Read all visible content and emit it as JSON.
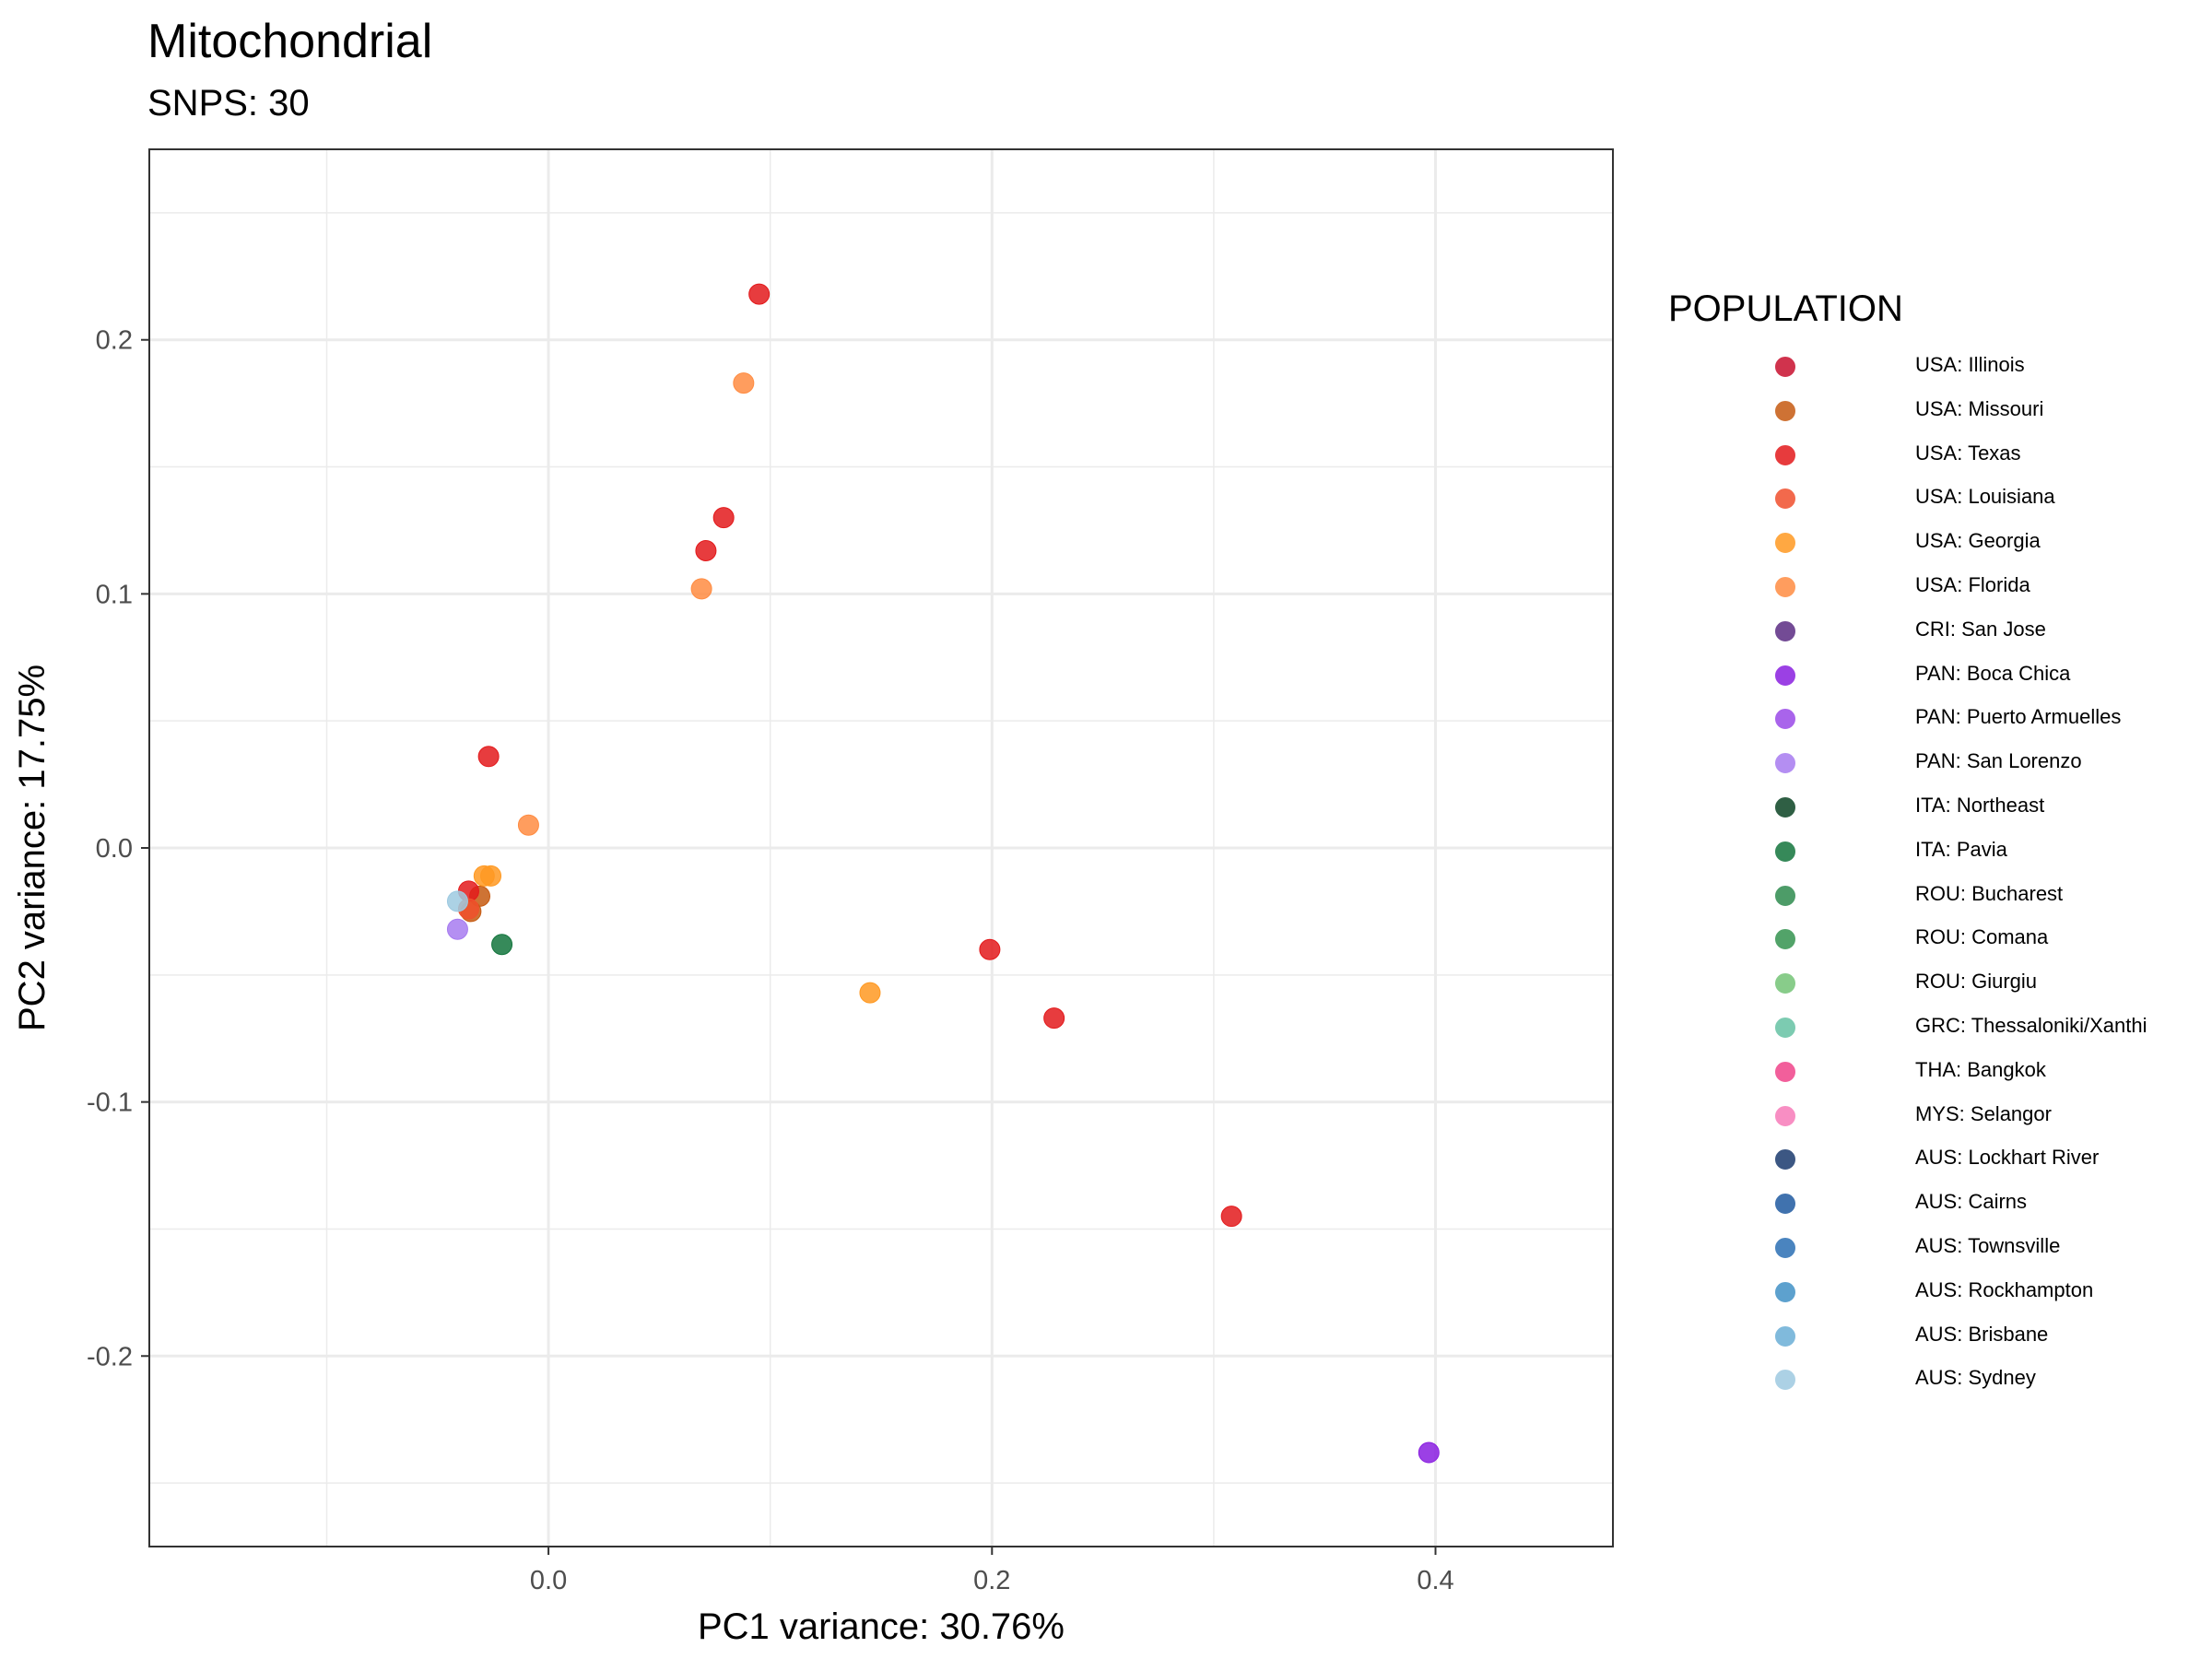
{
  "chart_data": {
    "type": "scatter",
    "title": "Mitochondrial",
    "subtitle": "SNPS: 30",
    "xlabel": "PC1 variance: 30.76%",
    "ylabel": "PC2 variance: 17.75%",
    "xlim": [
      -0.18,
      0.48
    ],
    "ylim": [
      -0.275,
      0.275
    ],
    "x_ticks": [
      0.0,
      0.2,
      0.4
    ],
    "x_tick_labels": [
      "0.0",
      "0.2",
      "0.4"
    ],
    "y_ticks": [
      -0.2,
      -0.1,
      0.0,
      0.1,
      0.2
    ],
    "y_tick_labels": [
      "-0.2",
      "-0.1",
      "0.0",
      "0.1",
      "0.2"
    ],
    "grid": true,
    "legend": {
      "title": "POPULATION",
      "position": "right"
    },
    "series": [
      {
        "name": "USA: Illinois",
        "color": "#C8102E",
        "points": []
      },
      {
        "name": "USA: Missouri",
        "color": "#C65A11",
        "points": [
          {
            "x": -0.031,
            "y": -0.019
          },
          {
            "x": -0.035,
            "y": -0.025
          }
        ]
      },
      {
        "name": "USA: Texas",
        "color": "#E31A1C",
        "points": [
          {
            "x": 0.095,
            "y": 0.218
          },
          {
            "x": 0.079,
            "y": 0.13
          },
          {
            "x": 0.071,
            "y": 0.117
          },
          {
            "x": -0.027,
            "y": 0.036
          },
          {
            "x": -0.036,
            "y": -0.017
          },
          {
            "x": 0.199,
            "y": -0.04
          },
          {
            "x": 0.228,
            "y": -0.067
          },
          {
            "x": 0.308,
            "y": -0.145
          }
        ]
      },
      {
        "name": "USA: Louisiana",
        "color": "#F0502D",
        "points": [
          {
            "x": -0.036,
            "y": -0.024
          }
        ]
      },
      {
        "name": "USA: Georgia",
        "color": "#FF9922",
        "points": [
          {
            "x": -0.029,
            "y": -0.011
          },
          {
            "x": -0.026,
            "y": -0.011
          },
          {
            "x": 0.145,
            "y": -0.057
          }
        ]
      },
      {
        "name": "USA: Florida",
        "color": "#FF8C42",
        "points": [
          {
            "x": 0.088,
            "y": 0.183
          },
          {
            "x": 0.069,
            "y": 0.102
          },
          {
            "x": -0.009,
            "y": 0.009
          }
        ]
      },
      {
        "name": "CRI: San Jose",
        "color": "#5B2C83",
        "points": []
      },
      {
        "name": "PAN: Boca Chica",
        "color": "#8A1FE0",
        "points": [
          {
            "x": 0.397,
            "y": -0.238
          }
        ]
      },
      {
        "name": "PAN: Puerto Armuelles",
        "color": "#9B4AE8",
        "points": []
      },
      {
        "name": "PAN: San Lorenzo",
        "color": "#A77BF0",
        "points": [
          {
            "x": -0.041,
            "y": -0.032
          }
        ]
      },
      {
        "name": "ITA: Northeast",
        "color": "#0B4424",
        "points": []
      },
      {
        "name": "ITA: Pavia",
        "color": "#13753D",
        "points": [
          {
            "x": -0.021,
            "y": -0.038
          }
        ]
      },
      {
        "name": "ROU: Bucharest",
        "color": "#2E8B4E",
        "points": []
      },
      {
        "name": "ROU: Comana",
        "color": "#34944F",
        "points": []
      },
      {
        "name": "ROU: Giurgiu",
        "color": "#74C476",
        "points": []
      },
      {
        "name": "GRC: Thessaloniki/Xanthi",
        "color": "#66C2A4",
        "points": []
      },
      {
        "name": "THA: Bangkok",
        "color": "#F0448A",
        "points": []
      },
      {
        "name": "MYS: Selangor",
        "color": "#F77BB9",
        "points": []
      },
      {
        "name": "AUS: Lockhart River",
        "color": "#1B3A6E",
        "points": []
      },
      {
        "name": "AUS: Cairns",
        "color": "#1F5AA0",
        "points": []
      },
      {
        "name": "AUS: Townsville",
        "color": "#2B6FB5",
        "points": []
      },
      {
        "name": "AUS: Rockhampton",
        "color": "#4191C6",
        "points": []
      },
      {
        "name": "AUS: Brisbane",
        "color": "#6BAED6",
        "points": []
      },
      {
        "name": "AUS: Sydney",
        "color": "#9ECAE1",
        "points": [
          {
            "x": -0.041,
            "y": -0.021
          }
        ]
      }
    ]
  }
}
